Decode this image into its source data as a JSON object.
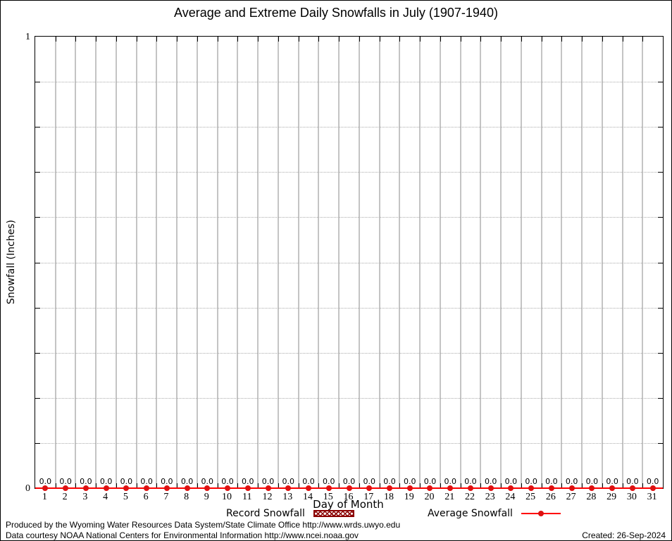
{
  "title": "Average and Extreme Daily Snowfalls in July (1907-1940)",
  "y_axis": {
    "label": "Snowfall (Inches)",
    "top_tick_label": "1",
    "bottom_tick_label": "0"
  },
  "x_axis": {
    "label": "Day of Month"
  },
  "legend": {
    "record": {
      "label": "Record Snowfall",
      "key": "hatched-box"
    },
    "average": {
      "label": "Average Snowfall",
      "key": "line-with-point"
    }
  },
  "footer": {
    "line1": "Produced by the Wyoming Water Resources Data System/State Climate Office http://www.wrds.uwyo.edu",
    "line2": "Data courtesy NOAA National Centers for Environmental Information http://www.ncei.noaa.gov",
    "created": "Created: 26-Sep-2024"
  },
  "colors": {
    "average_line": "#ff0000",
    "average_point": "#dd1111",
    "record_series": "#8b0000",
    "grid_vertical": "#c4c4c4",
    "grid_horizontal_dotted": "#ababab",
    "axis": "#000000"
  },
  "chart_data": {
    "type": "bar",
    "title": "Average and Extreme Daily Snowfalls in July (1907-1940)",
    "xlabel": "Day of Month",
    "ylabel": "Snowfall (Inches)",
    "ylim": [
      0,
      1
    ],
    "y_major_tick_labels": [
      "0",
      "1"
    ],
    "y_minor_tick_interval": 0.1,
    "grid": {
      "vertical": "solid gray line at each day boundary",
      "horizontal": "dotted gray line every 0.1"
    },
    "legend_position": "bottom-center",
    "categories": [
      "1",
      "2",
      "3",
      "4",
      "5",
      "6",
      "7",
      "8",
      "9",
      "10",
      "11",
      "12",
      "13",
      "14",
      "15",
      "16",
      "17",
      "18",
      "19",
      "20",
      "21",
      "22",
      "23",
      "24",
      "25",
      "26",
      "27",
      "28",
      "29",
      "30",
      "31"
    ],
    "series": [
      {
        "name": "Record Snowfall",
        "type": "bar",
        "style": "dark red hatched bars",
        "values": [
          0,
          0,
          0,
          0,
          0,
          0,
          0,
          0,
          0,
          0,
          0,
          0,
          0,
          0,
          0,
          0,
          0,
          0,
          0,
          0,
          0,
          0,
          0,
          0,
          0,
          0,
          0,
          0,
          0,
          0,
          0
        ]
      },
      {
        "name": "Average Snowfall",
        "type": "line+point",
        "style": "red line with filled circle points",
        "values": [
          0,
          0,
          0,
          0,
          0,
          0,
          0,
          0,
          0,
          0,
          0,
          0,
          0,
          0,
          0,
          0,
          0,
          0,
          0,
          0,
          0,
          0,
          0,
          0,
          0,
          0,
          0,
          0,
          0,
          0,
          0
        ]
      }
    ],
    "value_labels": [
      "0.0",
      "0.0",
      "0.0",
      "0.0",
      "0.0",
      "0.0",
      "0.0",
      "0.0",
      "0.0",
      "0.0",
      "0.0",
      "0.0",
      "0.0",
      "0.0",
      "0.0",
      "0.0",
      "0.0",
      "0.0",
      "0.0",
      "0.0",
      "0.0",
      "0.0",
      "0.0",
      "0.0",
      "0.0",
      "0.0",
      "0.0",
      "0.0",
      "0.0",
      "0.0",
      "0.0"
    ]
  }
}
